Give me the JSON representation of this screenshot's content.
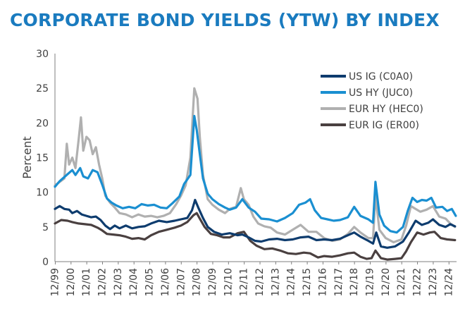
{
  "chart_data": {
    "type": "line",
    "title": "CORPORATE BOND YIELDS (YTW) BY INDEX",
    "ylabel": "Percent",
    "xlabel": "",
    "ylim": [
      0,
      30
    ],
    "yticks": [
      0,
      5,
      10,
      15,
      20,
      25,
      30
    ],
    "x_tick_labels": [
      "12/99",
      "12/00",
      "12/01",
      "12/02",
      "12/03",
      "12/04",
      "12/05",
      "12/06",
      "12/07",
      "12/08",
      "12/09",
      "12/10",
      "12/11",
      "12/12",
      "12/13",
      "12/14",
      "12/15",
      "12/16",
      "12/17",
      "12/18",
      "12/19",
      "12/20",
      "12/21",
      "12/22",
      "12/23",
      "12/24"
    ],
    "x_unit": "decimal year",
    "xlim": [
      1999.9,
      2025.4
    ],
    "grid": false,
    "legend_position": "top-right",
    "series": [
      {
        "name": "US IG (C0A0)",
        "color": "#0e3c6e",
        "x": [
          1999.9,
          2000.2,
          2000.5,
          2000.8,
          2001.0,
          2001.3,
          2001.6,
          2001.9,
          2002.2,
          2002.5,
          2002.8,
          2003.1,
          2003.4,
          2003.7,
          2004.0,
          2004.4,
          2004.8,
          2005.2,
          2005.6,
          2006.0,
          2006.5,
          2007.0,
          2007.5,
          2007.9,
          2008.3,
          2008.6,
          2008.8,
          2009.0,
          2009.3,
          2009.6,
          2010.0,
          2010.5,
          2011.0,
          2011.5,
          2011.8,
          2012.2,
          2012.6,
          2013.0,
          2013.5,
          2014.0,
          2014.5,
          2015.0,
          2015.5,
          2016.0,
          2016.5,
          2017.0,
          2017.5,
          2018.0,
          2018.5,
          2018.9,
          2019.3,
          2019.8,
          2020.1,
          2020.3,
          2020.6,
          2021.0,
          2021.5,
          2022.0,
          2022.4,
          2022.8,
          2023.2,
          2023.6,
          2023.9,
          2024.3,
          2024.7,
          2025.0,
          2025.3
        ],
        "y": [
          7.6,
          8.0,
          7.6,
          7.5,
          7.0,
          7.3,
          6.8,
          6.6,
          6.4,
          6.5,
          6.0,
          5.2,
          4.7,
          5.2,
          4.8,
          5.2,
          4.8,
          5.0,
          5.1,
          5.5,
          5.9,
          5.7,
          5.9,
          6.1,
          6.3,
          7.4,
          8.9,
          7.8,
          6.3,
          5.0,
          4.3,
          3.9,
          4.1,
          3.8,
          3.9,
          3.5,
          3.0,
          2.9,
          3.2,
          3.3,
          3.1,
          3.2,
          3.5,
          3.6,
          3.1,
          3.2,
          3.1,
          3.3,
          3.8,
          4.2,
          3.6,
          3.0,
          2.6,
          4.2,
          2.2,
          2.0,
          2.2,
          2.9,
          4.3,
          5.9,
          5.3,
          5.6,
          6.1,
          5.3,
          5.0,
          5.4,
          5.1
        ]
      },
      {
        "name": "US HY (JUC0)",
        "color": "#1a8fd1",
        "x": [
          1999.9,
          2000.2,
          2000.5,
          2000.8,
          2001.0,
          2001.2,
          2001.5,
          2001.7,
          2002.0,
          2002.3,
          2002.6,
          2002.9,
          2003.2,
          2003.5,
          2003.8,
          2004.2,
          2004.6,
          2005.0,
          2005.4,
          2005.8,
          2006.2,
          2006.6,
          2007.0,
          2007.4,
          2007.8,
          2008.1,
          2008.5,
          2008.75,
          2008.9,
          2009.1,
          2009.3,
          2009.6,
          2009.9,
          2010.3,
          2010.7,
          2011.0,
          2011.4,
          2011.8,
          2012.2,
          2012.6,
          2013.0,
          2013.5,
          2014.0,
          2014.5,
          2015.0,
          2015.4,
          2015.8,
          2016.1,
          2016.4,
          2016.8,
          2017.2,
          2017.6,
          2018.0,
          2018.5,
          2018.9,
          2019.3,
          2019.8,
          2020.1,
          2020.25,
          2020.5,
          2020.8,
          2021.2,
          2021.6,
          2022.0,
          2022.3,
          2022.6,
          2022.9,
          2023.2,
          2023.5,
          2023.8,
          2024.1,
          2024.5,
          2024.8,
          2025.1,
          2025.35
        ],
        "y": [
          10.8,
          11.6,
          12.2,
          12.8,
          13.2,
          12.5,
          13.5,
          12.3,
          12.0,
          13.2,
          12.9,
          11.1,
          9.1,
          8.5,
          8.1,
          7.7,
          7.9,
          7.7,
          8.3,
          8.1,
          8.2,
          7.8,
          7.7,
          8.5,
          9.4,
          11.2,
          12.5,
          21.0,
          19.0,
          15.5,
          12.0,
          9.8,
          9.0,
          8.3,
          7.8,
          7.5,
          7.8,
          9.0,
          7.8,
          7.2,
          6.2,
          6.1,
          5.8,
          6.3,
          7.0,
          8.2,
          8.5,
          9.0,
          7.4,
          6.3,
          6.1,
          5.9,
          6.0,
          6.4,
          7.9,
          6.6,
          6.1,
          5.6,
          11.5,
          6.8,
          5.2,
          4.4,
          4.2,
          5.0,
          7.3,
          9.2,
          8.6,
          8.9,
          8.8,
          9.2,
          7.8,
          7.9,
          7.3,
          7.6,
          6.6
        ]
      },
      {
        "name": "EUR HY (HEC0)",
        "color": "#b0b0b0",
        "x": [
          1999.9,
          2000.2,
          2000.5,
          2000.65,
          2000.8,
          2001.0,
          2001.2,
          2001.4,
          2001.55,
          2001.7,
          2001.9,
          2002.1,
          2002.3,
          2002.5,
          2002.7,
          2002.9,
          2003.1,
          2003.4,
          2003.7,
          2004.0,
          2004.4,
          2004.8,
          2005.2,
          2005.6,
          2006.0,
          2006.4,
          2006.8,
          2007.2,
          2007.6,
          2007.9,
          2008.2,
          2008.5,
          2008.75,
          2008.95,
          2009.1,
          2009.3,
          2009.6,
          2009.9,
          2010.3,
          2010.7,
          2011.0,
          2011.4,
          2011.7,
          2011.9,
          2012.2,
          2012.5,
          2012.8,
          2013.2,
          2013.6,
          2014.0,
          2014.5,
          2015.0,
          2015.5,
          2016.0,
          2016.5,
          2017.0,
          2017.5,
          2018.0,
          2018.5,
          2018.9,
          2019.3,
          2019.8,
          2020.1,
          2020.25,
          2020.5,
          2020.9,
          2021.4,
          2021.9,
          2022.2,
          2022.5,
          2022.8,
          2023.1,
          2023.5,
          2023.9,
          2024.3,
          2024.7,
          2025.0,
          2025.3
        ],
        "y": [
          11.0,
          11.5,
          12.0,
          17.0,
          14.0,
          15.0,
          13.5,
          17.5,
          20.8,
          16.0,
          18.0,
          17.5,
          15.5,
          16.5,
          14.0,
          12.0,
          9.5,
          8.5,
          7.8,
          7.0,
          6.8,
          6.4,
          6.8,
          6.5,
          6.6,
          6.4,
          6.6,
          7.0,
          8.3,
          9.5,
          11.0,
          15.0,
          25.0,
          23.5,
          18.0,
          12.5,
          9.0,
          8.2,
          7.5,
          7.0,
          7.6,
          7.9,
          10.6,
          9.0,
          8.2,
          6.5,
          5.5,
          5.1,
          4.9,
          4.2,
          3.9,
          4.6,
          5.3,
          4.3,
          4.3,
          3.4,
          3.0,
          3.2,
          4.0,
          5.0,
          4.2,
          3.4,
          3.4,
          9.5,
          4.6,
          3.4,
          2.8,
          3.2,
          5.2,
          8.0,
          7.6,
          7.2,
          7.5,
          8.0,
          6.5,
          6.2,
          5.5,
          5.0
        ]
      },
      {
        "name": "EUR IG (ER00)",
        "color": "#4a4040",
        "x": [
          1999.9,
          2000.3,
          2000.7,
          2001.0,
          2001.4,
          2001.8,
          2002.2,
          2002.6,
          2002.9,
          2003.2,
          2003.6,
          2004.0,
          2004.4,
          2004.8,
          2005.2,
          2005.6,
          2006.0,
          2006.5,
          2007.0,
          2007.5,
          2007.9,
          2008.3,
          2008.7,
          2008.9,
          2009.1,
          2009.4,
          2009.8,
          2010.2,
          2010.6,
          2011.0,
          2011.5,
          2011.9,
          2012.3,
          2012.7,
          2013.2,
          2013.7,
          2014.2,
          2014.7,
          2015.2,
          2015.7,
          2016.1,
          2016.6,
          2017.0,
          2017.5,
          2018.0,
          2018.5,
          2018.9,
          2019.3,
          2019.7,
          2020.0,
          2020.25,
          2020.6,
          2021.0,
          2021.5,
          2021.9,
          2022.2,
          2022.5,
          2022.9,
          2023.3,
          2023.7,
          2024.0,
          2024.4,
          2024.8,
          2025.3
        ],
        "y": [
          5.5,
          6.0,
          5.9,
          5.7,
          5.5,
          5.4,
          5.3,
          4.9,
          4.5,
          4.0,
          3.9,
          3.8,
          3.6,
          3.3,
          3.4,
          3.2,
          3.8,
          4.3,
          4.6,
          4.9,
          5.2,
          5.7,
          6.7,
          7.0,
          6.2,
          5.0,
          4.0,
          3.8,
          3.5,
          3.5,
          4.1,
          4.3,
          3.0,
          2.3,
          1.8,
          1.9,
          1.6,
          1.2,
          1.1,
          1.3,
          1.2,
          0.6,
          0.8,
          0.7,
          0.9,
          1.2,
          1.3,
          0.7,
          0.4,
          0.5,
          1.6,
          0.5,
          0.3,
          0.4,
          0.5,
          1.5,
          2.8,
          4.2,
          3.9,
          4.2,
          4.3,
          3.4,
          3.2,
          3.1
        ]
      }
    ]
  }
}
